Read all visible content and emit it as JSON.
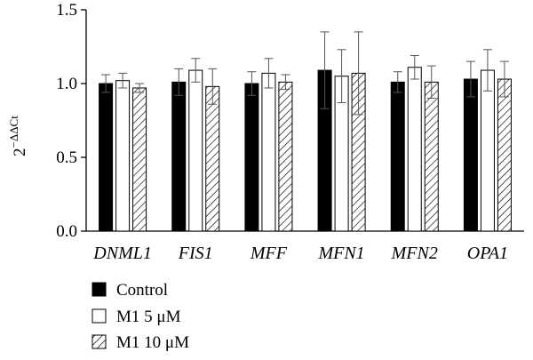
{
  "chart_data": {
    "type": "bar",
    "title": "",
    "xlabel": "",
    "ylabel": {
      "base": "2",
      "exponent": "−ΔΔCt"
    },
    "ylim": [
      0,
      1.5
    ],
    "yticks": [
      "0.0",
      "0.5",
      "1.0",
      "1.5"
    ],
    "categories": [
      "DNML1",
      "FIS1",
      "MFF",
      "MFN1",
      "MFN2",
      "OPA1"
    ],
    "series": [
      {
        "name": "Control",
        "fill": "solid",
        "color": "#000000",
        "values": [
          1.0,
          1.01,
          1.0,
          1.09,
          1.01,
          1.03
        ],
        "errors": [
          0.06,
          0.09,
          0.08,
          0.26,
          0.07,
          0.12
        ]
      },
      {
        "name": "M1 5 μM",
        "fill": "open",
        "color": "#ffffff",
        "values": [
          1.02,
          1.09,
          1.07,
          1.05,
          1.11,
          1.09
        ],
        "errors": [
          0.05,
          0.08,
          0.1,
          0.18,
          0.08,
          0.14
        ]
      },
      {
        "name": "M1 10 μM",
        "fill": "hatched",
        "color": "#ffffff",
        "values": [
          0.97,
          0.98,
          1.01,
          1.07,
          1.01,
          1.03
        ],
        "errors": [
          0.03,
          0.12,
          0.05,
          0.28,
          0.11,
          0.12
        ]
      }
    ],
    "legend": "bottom-left",
    "grid": false
  }
}
